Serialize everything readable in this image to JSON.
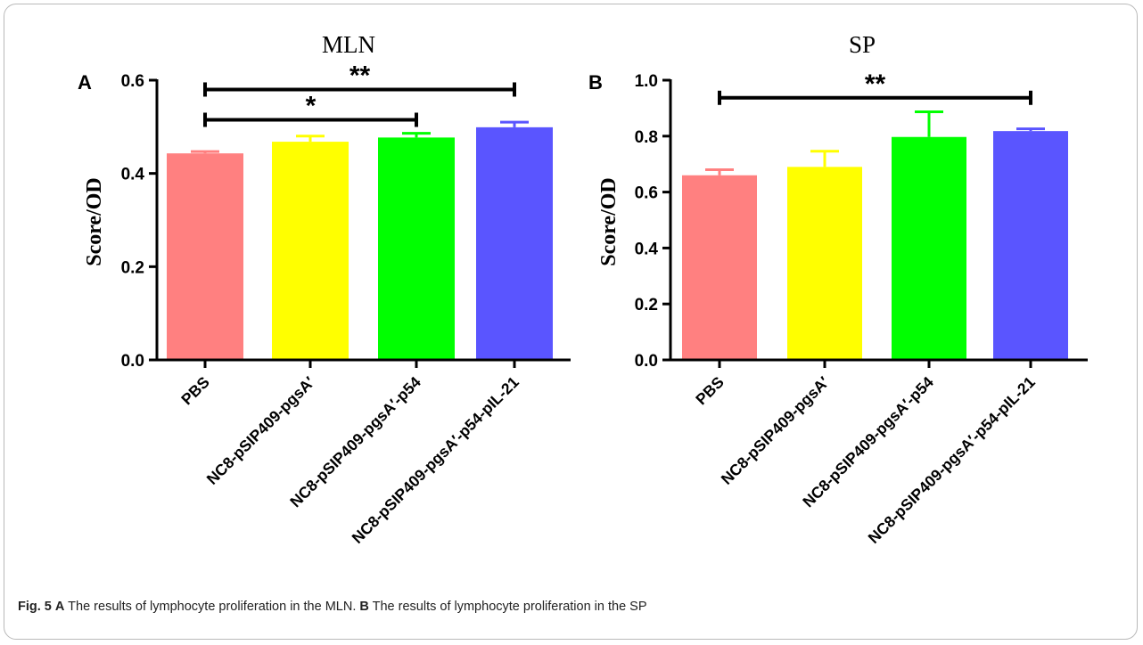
{
  "figure": {
    "caption": {
      "label": "Fig. 5",
      "panel_a": "A",
      "text_a": "The results of lymphocyte proliferation in the MLN.",
      "panel_b": "B",
      "text_b": "The results of lymphocyte proliferation in the SP"
    }
  },
  "chart_data": [
    {
      "type": "bar",
      "panel": "A",
      "title": "MLN",
      "ylabel": "Score/OD",
      "xlabel": "",
      "categories": [
        "PBS",
        "NC8-pSIP409-pgsA′",
        "NC8-pSIP409-pgsA′-p54",
        "NC8-pSIP409-pgsA′-p54-pIL-21"
      ],
      "values": [
        0.443,
        0.468,
        0.477,
        0.499
      ],
      "errors": [
        0.004,
        0.012,
        0.009,
        0.011
      ],
      "colors": [
        "#ff8080",
        "#ffff00",
        "#00ff00",
        "#5a55ff"
      ],
      "ylim": [
        0,
        0.6
      ],
      "yticks": [
        0.0,
        0.2,
        0.4,
        0.6
      ],
      "ytick_labels": [
        "0.0",
        "0.2",
        "0.4",
        "0.6"
      ],
      "grid": false,
      "significance": [
        {
          "from": 0,
          "to": 3,
          "label": "**",
          "y": 0.58
        },
        {
          "from": 0,
          "to": 2,
          "label": "*",
          "y": 0.515
        }
      ]
    },
    {
      "type": "bar",
      "panel": "B",
      "title": "SP",
      "ylabel": "Score/OD",
      "xlabel": "",
      "categories": [
        "PBS",
        "NC8-pSIP409-pgsA′",
        "NC8-pSIP409-pgsA′-p54",
        "NC8-pSIP409-pgsA′-p54-pIL-21"
      ],
      "values": [
        0.66,
        0.69,
        0.797,
        0.818
      ],
      "errors": [
        0.02,
        0.056,
        0.09,
        0.008
      ],
      "colors": [
        "#ff8080",
        "#ffff00",
        "#00ff00",
        "#5a55ff"
      ],
      "ylim": [
        0,
        1.0
      ],
      "yticks": [
        0.0,
        0.2,
        0.4,
        0.6,
        0.8,
        1.0
      ],
      "ytick_labels": [
        "0.0",
        "0.2",
        "0.4",
        "0.6",
        "0.8",
        "1.0"
      ],
      "grid": false,
      "significance": [
        {
          "from": 0,
          "to": 3,
          "label": "**",
          "y": 0.937
        }
      ]
    }
  ]
}
